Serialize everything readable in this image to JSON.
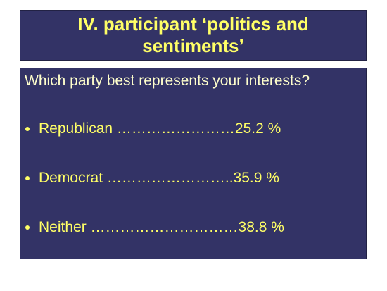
{
  "title": "IV. participant ‘politics and sentiments’",
  "question": "Which party best represents your interests?",
  "items": [
    "Republican ……………………25.2 %",
    "Democrat ……………………..35.9 %",
    "Neither …………………………38.8 %"
  ]
}
